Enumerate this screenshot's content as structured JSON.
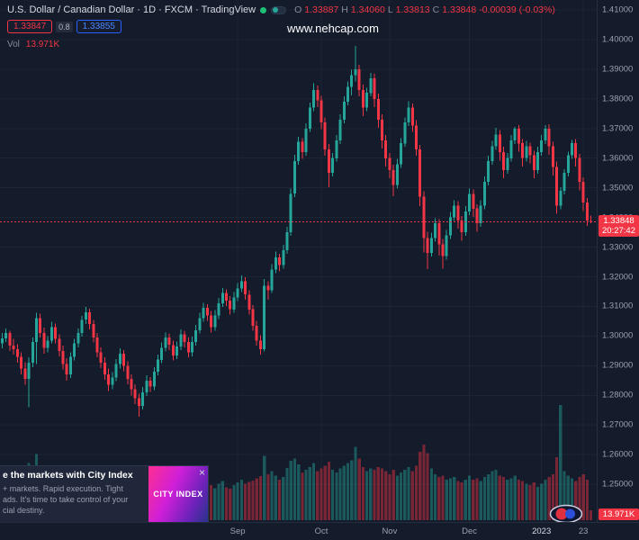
{
  "header": {
    "symbol_title": "U.S. Dollar / Canadian Dollar · 1D · FXCM · TradingView",
    "ohlc": {
      "o_label": "O",
      "o": "1.33887",
      "h_label": "H",
      "h": "1.34060",
      "l_label": "L",
      "l": "1.33813",
      "c_label": "C",
      "c": "1.33848",
      "change": "-0.00039 (-0.03%)"
    },
    "bid": "1.33847",
    "spread": "0.8",
    "ask": "1.33855",
    "vol_label": "Vol",
    "vol_value": "13.971K"
  },
  "watermark": {
    "text": "www.nehcap.com"
  },
  "price_scale": {
    "last_price_label": "1.33848",
    "countdown": "20:27:42",
    "volume_badge": "13.971K"
  },
  "ad": {
    "headline": "e the markets with City Index",
    "line1": "+ markets. Rapid execution. Tight",
    "line2": "ads. It's time to take control of your",
    "line3": "cial destiny.",
    "logo_text": "CITY INDEX",
    "close_label": "×"
  },
  "colors": {
    "up": "#26a69a",
    "down": "#f23645",
    "accent_blue": "#2962ff",
    "axis_text": "#9aa0b0",
    "background": "#141b2b"
  },
  "chart_data": {
    "type": "candlestick+volume",
    "symbol": "USD/CAD",
    "interval": "1D",
    "exchange": "FXCM",
    "last_price": 1.33848,
    "ylim": [
      1.25,
      1.41
    ],
    "price_axis_labels": [
      "1.41000",
      "1.40000",
      "1.39000",
      "1.38000",
      "1.37000",
      "1.36000",
      "1.35000",
      "1.34000",
      "1.33000",
      "1.32000",
      "1.31000",
      "1.30000",
      "1.29000",
      "1.28000",
      "1.27000",
      "1.26000",
      "1.25000"
    ],
    "time_axis": [
      {
        "label": "Sep",
        "i": 62
      },
      {
        "label": "Oct",
        "i": 84
      },
      {
        "label": "Nov",
        "i": 102
      },
      {
        "label": "Dec",
        "i": 123
      },
      {
        "label": "2023",
        "i": 142
      },
      {
        "label": "23",
        "i": 153
      }
    ],
    "candles_format": [
      "open",
      "high",
      "low",
      "close",
      "volumeK"
    ],
    "candles": [
      [
        1.2975,
        1.301,
        1.2958,
        1.2992,
        55
      ],
      [
        1.2992,
        1.3025,
        1.298,
        1.301,
        48
      ],
      [
        1.301,
        1.3018,
        1.295,
        1.2968,
        52
      ],
      [
        1.2968,
        1.299,
        1.2938,
        1.2955,
        45
      ],
      [
        1.2955,
        1.2972,
        1.291,
        1.293,
        58
      ],
      [
        1.293,
        1.2945,
        1.287,
        1.289,
        62
      ],
      [
        1.289,
        1.2912,
        1.2835,
        1.2855,
        70
      ],
      [
        1.2855,
        1.2928,
        1.276,
        1.291,
        82
      ],
      [
        1.291,
        1.2995,
        1.2895,
        1.298,
        74
      ],
      [
        1.298,
        1.3078,
        1.2905,
        1.306,
        95
      ],
      [
        1.306,
        1.3075,
        1.2995,
        1.301,
        60
      ],
      [
        1.301,
        1.3028,
        1.294,
        1.296,
        55
      ],
      [
        1.296,
        1.3,
        1.2945,
        1.2985,
        42
      ],
      [
        1.2985,
        1.3048,
        1.2975,
        1.303,
        50
      ],
      [
        1.303,
        1.3042,
        1.2975,
        1.299,
        44
      ],
      [
        1.299,
        1.3005,
        1.2932,
        1.295,
        48
      ],
      [
        1.295,
        1.2968,
        1.2888,
        1.2905,
        52
      ],
      [
        1.2905,
        1.2925,
        1.285,
        1.287,
        58
      ],
      [
        1.287,
        1.2945,
        1.2858,
        1.293,
        47
      ],
      [
        1.293,
        1.299,
        1.2918,
        1.2975,
        43
      ],
      [
        1.2975,
        1.3025,
        1.2962,
        1.301,
        46
      ],
      [
        1.301,
        1.3068,
        1.2998,
        1.3055,
        51
      ],
      [
        1.3055,
        1.3098,
        1.304,
        1.308,
        55
      ],
      [
        1.308,
        1.3092,
        1.3022,
        1.304,
        49
      ],
      [
        1.304,
        1.3055,
        1.2978,
        1.2995,
        53
      ],
      [
        1.2995,
        1.301,
        1.2928,
        1.2945,
        57
      ],
      [
        1.2945,
        1.2962,
        1.2892,
        1.291,
        50
      ],
      [
        1.291,
        1.2928,
        1.2852,
        1.287,
        54
      ],
      [
        1.287,
        1.289,
        1.2815,
        1.2835,
        61
      ],
      [
        1.2835,
        1.2878,
        1.282,
        1.286,
        45
      ],
      [
        1.286,
        1.2922,
        1.2848,
        1.2905,
        48
      ],
      [
        1.2905,
        1.2958,
        1.289,
        1.294,
        44
      ],
      [
        1.294,
        1.2952,
        1.2882,
        1.29,
        46
      ],
      [
        1.29,
        1.2915,
        1.2838,
        1.2855,
        52
      ],
      [
        1.2855,
        1.287,
        1.28,
        1.282,
        56
      ],
      [
        1.282,
        1.2838,
        1.277,
        1.279,
        60
      ],
      [
        1.279,
        1.2805,
        1.2728,
        1.2765,
        72
      ],
      [
        1.2765,
        1.2828,
        1.2752,
        1.281,
        58
      ],
      [
        1.281,
        1.2868,
        1.2798,
        1.285,
        50
      ],
      [
        1.285,
        1.2862,
        1.2812,
        1.283,
        44
      ],
      [
        1.283,
        1.2895,
        1.2818,
        1.288,
        47
      ],
      [
        1.288,
        1.2938,
        1.2868,
        1.292,
        49
      ],
      [
        1.292,
        1.2978,
        1.2908,
        1.296,
        52
      ],
      [
        1.296,
        1.3012,
        1.2948,
        1.2995,
        55
      ],
      [
        1.2995,
        1.3008,
        1.2952,
        1.297,
        46
      ],
      [
        1.297,
        1.2985,
        1.2918,
        1.2935,
        48
      ],
      [
        1.2935,
        1.2982,
        1.2922,
        1.2965,
        43
      ],
      [
        1.2965,
        1.3022,
        1.2952,
        1.3005,
        47
      ],
      [
        1.3005,
        1.3018,
        1.2962,
        1.298,
        41
      ],
      [
        1.298,
        1.2995,
        1.2928,
        1.2945,
        45
      ],
      [
        1.2945,
        1.2998,
        1.2932,
        1.298,
        44
      ],
      [
        1.298,
        1.3038,
        1.2968,
        1.302,
        49
      ],
      [
        1.302,
        1.3078,
        1.3008,
        1.306,
        53
      ],
      [
        1.306,
        1.3112,
        1.3048,
        1.3095,
        57
      ],
      [
        1.3095,
        1.3108,
        1.3052,
        1.307,
        48
      ],
      [
        1.307,
        1.3085,
        1.3012,
        1.303,
        50
      ],
      [
        1.303,
        1.3088,
        1.3018,
        1.307,
        46
      ],
      [
        1.307,
        1.3128,
        1.3058,
        1.311,
        52
      ],
      [
        1.311,
        1.3162,
        1.3098,
        1.3145,
        56
      ],
      [
        1.3145,
        1.3158,
        1.3102,
        1.312,
        47
      ],
      [
        1.312,
        1.3135,
        1.3072,
        1.309,
        45
      ],
      [
        1.309,
        1.3148,
        1.3078,
        1.313,
        50
      ],
      [
        1.313,
        1.3178,
        1.3118,
        1.316,
        54
      ],
      [
        1.316,
        1.3205,
        1.3148,
        1.3185,
        58
      ],
      [
        1.3185,
        1.3198,
        1.3122,
        1.314,
        52
      ],
      [
        1.314,
        1.3155,
        1.3072,
        1.309,
        55
      ],
      [
        1.309,
        1.3105,
        1.3018,
        1.3035,
        57
      ],
      [
        1.3035,
        1.3052,
        1.2968,
        1.2985,
        60
      ],
      [
        1.2985,
        1.3002,
        1.2938,
        1.2955,
        63
      ],
      [
        1.2955,
        1.3192,
        1.2948,
        1.317,
        92
      ],
      [
        1.317,
        1.3185,
        1.3122,
        1.3155,
        66
      ],
      [
        1.3155,
        1.3242,
        1.3145,
        1.3225,
        70
      ],
      [
        1.3225,
        1.3285,
        1.3212,
        1.3265,
        64
      ],
      [
        1.3265,
        1.3278,
        1.3218,
        1.324,
        58
      ],
      [
        1.324,
        1.3308,
        1.3228,
        1.329,
        62
      ],
      [
        1.329,
        1.3368,
        1.3278,
        1.335,
        75
      ],
      [
        1.335,
        1.3498,
        1.3338,
        1.348,
        85
      ],
      [
        1.348,
        1.3612,
        1.3468,
        1.359,
        88
      ],
      [
        1.359,
        1.3672,
        1.3578,
        1.3655,
        80
      ],
      [
        1.3655,
        1.3668,
        1.3598,
        1.362,
        68
      ],
      [
        1.362,
        1.3718,
        1.3608,
        1.37,
        72
      ],
      [
        1.37,
        1.3788,
        1.3688,
        1.377,
        76
      ],
      [
        1.377,
        1.3852,
        1.3758,
        1.383,
        82
      ],
      [
        1.383,
        1.3845,
        1.3772,
        1.3795,
        70
      ],
      [
        1.3795,
        1.381,
        1.3698,
        1.372,
        74
      ],
      [
        1.372,
        1.3738,
        1.3608,
        1.363,
        78
      ],
      [
        1.363,
        1.3648,
        1.3502,
        1.355,
        84
      ],
      [
        1.355,
        1.3618,
        1.3538,
        1.36,
        72
      ],
      [
        1.36,
        1.3678,
        1.3588,
        1.366,
        68
      ],
      [
        1.366,
        1.3748,
        1.3648,
        1.373,
        74
      ],
      [
        1.373,
        1.3808,
        1.3718,
        1.379,
        78
      ],
      [
        1.379,
        1.3858,
        1.3778,
        1.384,
        82
      ],
      [
        1.384,
        1.3898,
        1.3812,
        1.388,
        86
      ],
      [
        1.388,
        1.3978,
        1.3858,
        1.39,
        105
      ],
      [
        1.39,
        1.3915,
        1.3808,
        1.383,
        88
      ],
      [
        1.383,
        1.3848,
        1.3742,
        1.377,
        76
      ],
      [
        1.377,
        1.3838,
        1.3758,
        1.382,
        70
      ],
      [
        1.382,
        1.3888,
        1.3808,
        1.387,
        74
      ],
      [
        1.387,
        1.3885,
        1.3772,
        1.38,
        72
      ],
      [
        1.38,
        1.3818,
        1.3702,
        1.373,
        76
      ],
      [
        1.373,
        1.3748,
        1.3632,
        1.366,
        74
      ],
      [
        1.366,
        1.3678,
        1.3572,
        1.36,
        70
      ],
      [
        1.36,
        1.3618,
        1.3532,
        1.356,
        66
      ],
      [
        1.356,
        1.3578,
        1.3472,
        1.351,
        72
      ],
      [
        1.351,
        1.3598,
        1.3498,
        1.358,
        64
      ],
      [
        1.358,
        1.3668,
        1.3568,
        1.365,
        68
      ],
      [
        1.365,
        1.3738,
        1.3638,
        1.372,
        72
      ],
      [
        1.372,
        1.3792,
        1.3708,
        1.377,
        76
      ],
      [
        1.377,
        1.3785,
        1.3688,
        1.371,
        70
      ],
      [
        1.371,
        1.3728,
        1.3608,
        1.363,
        78
      ],
      [
        1.363,
        1.3645,
        1.3438,
        1.347,
        98
      ],
      [
        1.347,
        1.3488,
        1.3282,
        1.333,
        108
      ],
      [
        1.333,
        1.3352,
        1.3226,
        1.328,
        96
      ],
      [
        1.328,
        1.3348,
        1.3268,
        1.333,
        74
      ],
      [
        1.333,
        1.3398,
        1.3318,
        1.338,
        66
      ],
      [
        1.338,
        1.3395,
        1.3272,
        1.331,
        62
      ],
      [
        1.331,
        1.3328,
        1.3228,
        1.327,
        64
      ],
      [
        1.327,
        1.3358,
        1.3258,
        1.334,
        58
      ],
      [
        1.334,
        1.3418,
        1.3328,
        1.34,
        60
      ],
      [
        1.34,
        1.3458,
        1.3388,
        1.344,
        62
      ],
      [
        1.344,
        1.3455,
        1.3362,
        1.339,
        56
      ],
      [
        1.339,
        1.3405,
        1.3322,
        1.335,
        54
      ],
      [
        1.335,
        1.3438,
        1.3338,
        1.342,
        58
      ],
      [
        1.342,
        1.3498,
        1.3408,
        1.348,
        64
      ],
      [
        1.348,
        1.3495,
        1.3402,
        1.343,
        58
      ],
      [
        1.343,
        1.3445,
        1.3352,
        1.338,
        60
      ],
      [
        1.338,
        1.3458,
        1.3368,
        1.344,
        56
      ],
      [
        1.344,
        1.3538,
        1.3428,
        1.352,
        62
      ],
      [
        1.352,
        1.3608,
        1.3508,
        1.359,
        66
      ],
      [
        1.359,
        1.3658,
        1.3578,
        1.364,
        70
      ],
      [
        1.364,
        1.3702,
        1.3628,
        1.368,
        72
      ],
      [
        1.368,
        1.3695,
        1.3592,
        1.362,
        64
      ],
      [
        1.362,
        1.3638,
        1.3532,
        1.356,
        62
      ],
      [
        1.356,
        1.3618,
        1.3548,
        1.36,
        58
      ],
      [
        1.36,
        1.3678,
        1.3588,
        1.366,
        60
      ],
      [
        1.366,
        1.3705,
        1.3648,
        1.37,
        64
      ],
      [
        1.37,
        1.3712,
        1.3622,
        1.365,
        58
      ],
      [
        1.365,
        1.3665,
        1.3572,
        1.36,
        56
      ],
      [
        1.36,
        1.3658,
        1.3588,
        1.364,
        52
      ],
      [
        1.364,
        1.3652,
        1.3582,
        1.361,
        50
      ],
      [
        1.361,
        1.3625,
        1.3532,
        1.356,
        54
      ],
      [
        1.356,
        1.3638,
        1.3548,
        1.362,
        48
      ],
      [
        1.362,
        1.3678,
        1.3608,
        1.366,
        52
      ],
      [
        1.366,
        1.3712,
        1.3648,
        1.37,
        58
      ],
      [
        1.37,
        1.3715,
        1.3612,
        1.364,
        62
      ],
      [
        1.364,
        1.3655,
        1.3542,
        1.357,
        66
      ],
      [
        1.357,
        1.3588,
        1.3412,
        1.344,
        90
      ],
      [
        1.344,
        1.3502,
        1.3428,
        1.349,
        165
      ],
      [
        1.349,
        1.3562,
        1.3478,
        1.355,
        70
      ],
      [
        1.355,
        1.3622,
        1.3538,
        1.361,
        64
      ],
      [
        1.361,
        1.3662,
        1.3598,
        1.365,
        60
      ],
      [
        1.365,
        1.3665,
        1.3572,
        1.36,
        56
      ],
      [
        1.36,
        1.3615,
        1.3492,
        1.352,
        62
      ],
      [
        1.352,
        1.3535,
        1.3422,
        1.345,
        66
      ],
      [
        1.345,
        1.3465,
        1.3372,
        1.339,
        58
      ],
      [
        1.33887,
        1.3406,
        1.33813,
        1.33848,
        13.971
      ]
    ]
  }
}
